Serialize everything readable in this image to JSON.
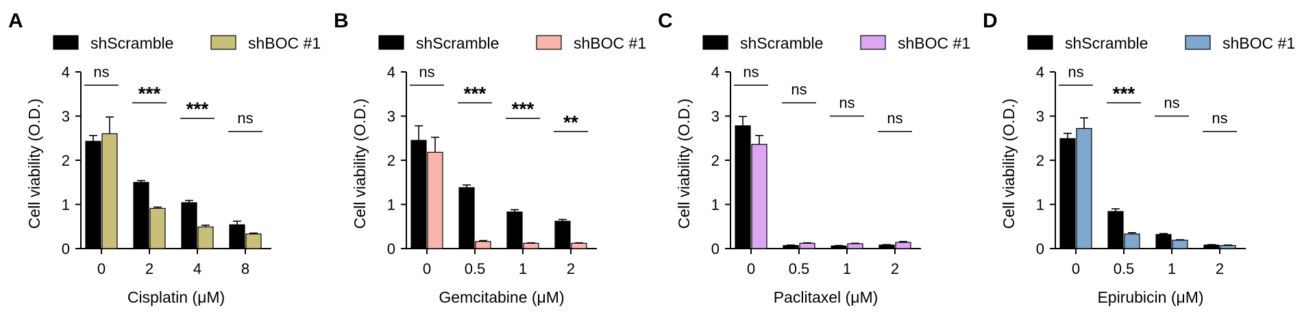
{
  "chart_data": [
    {
      "type": "bar",
      "panel": "A",
      "xlabel": "Cisplatin (μM)",
      "ylabel": "Cell viability (O.D.)",
      "ylim": [
        0,
        4
      ],
      "yticks": [
        "0",
        "1",
        "2",
        "3",
        "4"
      ],
      "categories": [
        "0",
        "2",
        "4",
        "8"
      ],
      "series": [
        {
          "name": "shScramble",
          "color": "#000000",
          "values": [
            2.43,
            1.5,
            1.04,
            0.54
          ],
          "errors": [
            0.13,
            0.04,
            0.05,
            0.08
          ]
        },
        {
          "name": "shBOC #1",
          "color": "#c8c07a",
          "values": [
            2.6,
            0.91,
            0.49,
            0.33
          ],
          "errors": [
            0.38,
            0.03,
            0.04,
            0.02
          ]
        }
      ],
      "significance": [
        "ns",
        "***",
        "***",
        "ns"
      ],
      "sig_levels": [
        3.7,
        3.3,
        2.95,
        2.65
      ]
    },
    {
      "type": "bar",
      "panel": "B",
      "xlabel": "Gemcitabine (μM)",
      "ylabel": "Cell viability (O.D.)",
      "ylim": [
        0,
        4
      ],
      "yticks": [
        "0",
        "1",
        "2",
        "3",
        "4"
      ],
      "categories": [
        "0",
        "0.5",
        "1",
        "2"
      ],
      "series": [
        {
          "name": "shScramble",
          "color": "#000000",
          "values": [
            2.45,
            1.38,
            0.83,
            0.62
          ],
          "errors": [
            0.33,
            0.06,
            0.05,
            0.04
          ]
        },
        {
          "name": "shBOC #1",
          "color": "#f9b4ae",
          "values": [
            2.18,
            0.16,
            0.12,
            0.12
          ],
          "errors": [
            0.34,
            0.02,
            0.01,
            0.01
          ]
        }
      ],
      "significance": [
        "ns",
        "***",
        "***",
        "**"
      ],
      "sig_levels": [
        3.7,
        3.3,
        2.95,
        2.65
      ]
    },
    {
      "type": "bar",
      "panel": "C",
      "xlabel": "Paclitaxel (μM)",
      "ylabel": "Cell viability (O.D.)",
      "ylim": [
        0,
        4
      ],
      "yticks": [
        "0",
        "1",
        "2",
        "3",
        "4"
      ],
      "categories": [
        "0",
        "0.5",
        "1",
        "2"
      ],
      "series": [
        {
          "name": "shScramble",
          "color": "#000000",
          "values": [
            2.78,
            0.07,
            0.06,
            0.08
          ],
          "errors": [
            0.21,
            0.01,
            0.01,
            0.01
          ]
        },
        {
          "name": "shBOC #1",
          "color": "#dca6f2",
          "values": [
            2.36,
            0.12,
            0.11,
            0.14
          ],
          "errors": [
            0.2,
            0.01,
            0.01,
            0.02
          ]
        }
      ],
      "significance": [
        "ns",
        "ns",
        "ns",
        "ns"
      ],
      "sig_levels": [
        3.7,
        3.3,
        3.0,
        2.65
      ]
    },
    {
      "type": "bar",
      "panel": "D",
      "xlabel": "Epirubicin (μM)",
      "ylabel": "Cell viability (O.D.)",
      "ylim": [
        0,
        4
      ],
      "yticks": [
        "0",
        "1",
        "2",
        "3",
        "4"
      ],
      "categories": [
        "0",
        "0.5",
        "1",
        "2"
      ],
      "series": [
        {
          "name": "shScramble",
          "color": "#000000",
          "values": [
            2.49,
            0.84,
            0.32,
            0.08
          ],
          "errors": [
            0.12,
            0.06,
            0.02,
            0.01
          ]
        },
        {
          "name": "shBOC #1",
          "color": "#7fa8cf",
          "values": [
            2.72,
            0.33,
            0.19,
            0.07
          ],
          "errors": [
            0.24,
            0.03,
            0.01,
            0.01
          ]
        }
      ],
      "significance": [
        "ns",
        "***",
        "ns",
        "ns"
      ],
      "sig_levels": [
        3.7,
        3.3,
        3.0,
        2.65
      ]
    }
  ]
}
